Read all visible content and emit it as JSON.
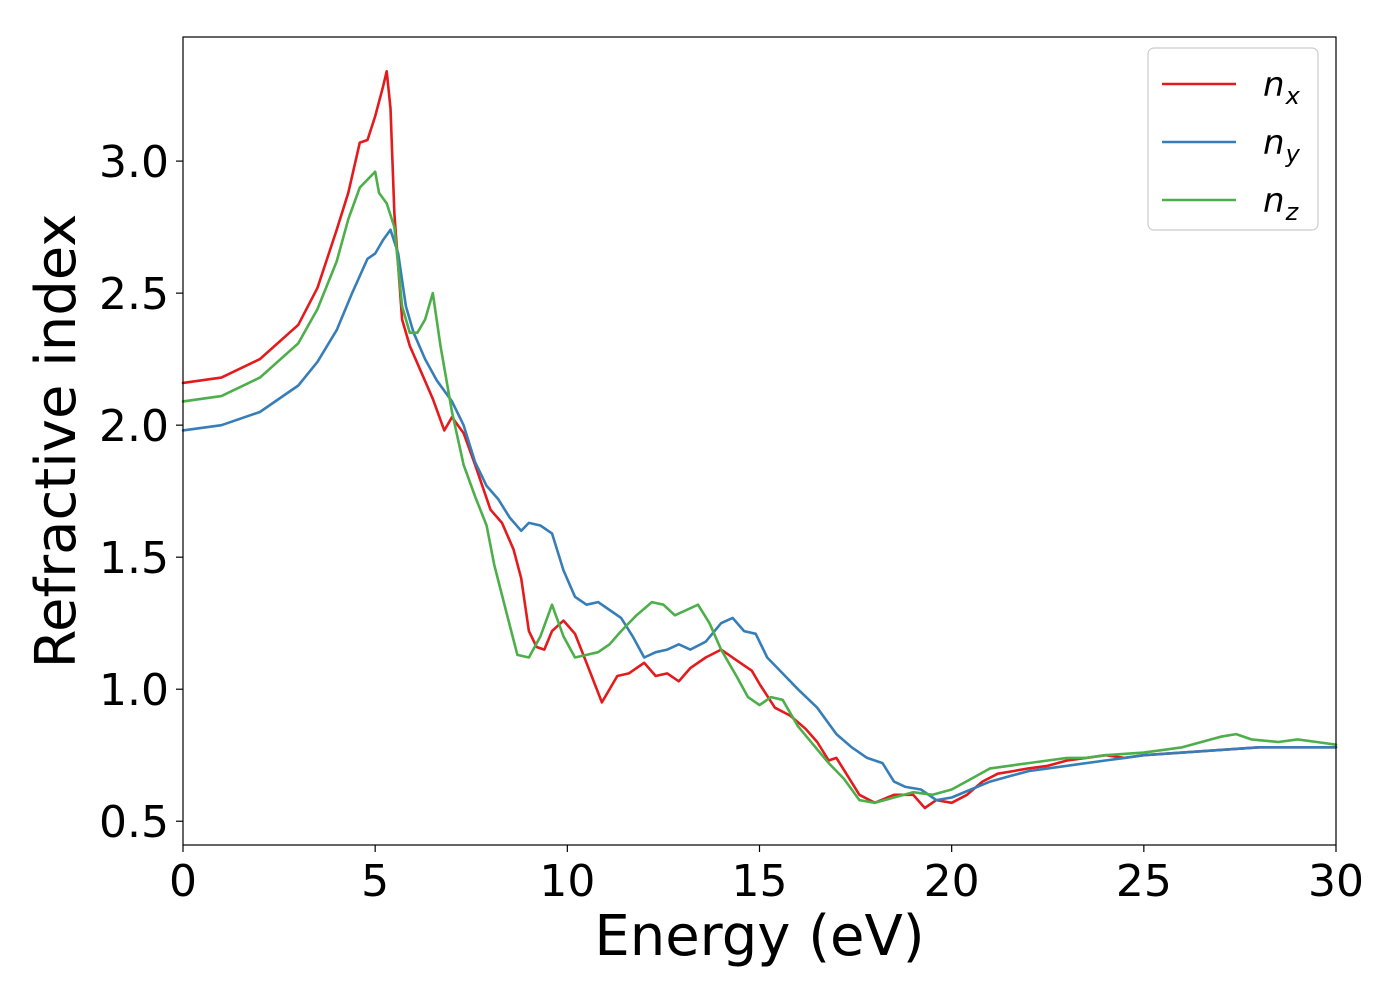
{
  "chart_data": {
    "type": "line",
    "xlabel": "Energy (eV)",
    "ylabel": "Refractive index",
    "xlim": [
      0,
      30
    ],
    "ylim": [
      0.41,
      3.47
    ],
    "xticks": [
      0,
      5,
      10,
      15,
      20,
      25,
      30
    ],
    "yticks": [
      0.5,
      1.0,
      1.5,
      2.0,
      2.5,
      3.0
    ],
    "xtick_labels": [
      "0",
      "5",
      "10",
      "15",
      "20",
      "25",
      "30"
    ],
    "ytick_labels": [
      "0.5",
      "1.0",
      "1.5",
      "2.0",
      "2.5",
      "3.0"
    ],
    "grid": false,
    "legend_position": "top-right",
    "series": [
      {
        "name": "n_x",
        "label_base": "n",
        "label_sub": "x",
        "color": "#e41a1c",
        "x": [
          0,
          1,
          2,
          3,
          3.5,
          4,
          4.3,
          4.6,
          4.8,
          5.0,
          5.2,
          5.3,
          5.4,
          5.5,
          5.7,
          5.9,
          6.2,
          6.5,
          6.8,
          7.0,
          7.3,
          7.6,
          8.0,
          8.3,
          8.6,
          8.8,
          9.0,
          9.2,
          9.4,
          9.6,
          9.9,
          10.2,
          10.5,
          10.9,
          11.3,
          11.6,
          12.0,
          12.3,
          12.6,
          12.9,
          13.2,
          13.6,
          14.0,
          14.4,
          14.8,
          15.0,
          15.4,
          15.8,
          16.2,
          16.5,
          16.8,
          17.0,
          17.3,
          17.6,
          18.0,
          18.5,
          19.0,
          19.3,
          19.6,
          20.0,
          20.4,
          20.8,
          21.2,
          21.6,
          22.0,
          22.5,
          23.0,
          23.5,
          24.0,
          24.5,
          25.0,
          26.0,
          27.0,
          28.0,
          29.0,
          30.0
        ],
        "y": [
          2.16,
          2.18,
          2.25,
          2.38,
          2.52,
          2.74,
          2.88,
          3.07,
          3.08,
          3.17,
          3.28,
          3.34,
          3.2,
          2.8,
          2.4,
          2.3,
          2.2,
          2.1,
          1.98,
          2.03,
          1.97,
          1.85,
          1.68,
          1.63,
          1.53,
          1.42,
          1.22,
          1.16,
          1.15,
          1.22,
          1.26,
          1.21,
          1.1,
          0.95,
          1.05,
          1.06,
          1.1,
          1.05,
          1.06,
          1.03,
          1.08,
          1.12,
          1.15,
          1.11,
          1.07,
          1.02,
          0.93,
          0.9,
          0.85,
          0.8,
          0.73,
          0.74,
          0.67,
          0.6,
          0.57,
          0.6,
          0.6,
          0.55,
          0.58,
          0.57,
          0.6,
          0.65,
          0.68,
          0.69,
          0.7,
          0.71,
          0.73,
          0.74,
          0.75,
          0.74,
          0.75,
          0.76,
          0.77,
          0.78,
          0.78,
          0.78
        ]
      },
      {
        "name": "n_y",
        "label_base": "n",
        "label_sub": "y",
        "color": "#377eb8",
        "x": [
          0,
          1,
          2,
          3,
          3.5,
          4,
          4.4,
          4.8,
          5.0,
          5.2,
          5.4,
          5.6,
          5.8,
          6.0,
          6.3,
          6.6,
          7.0,
          7.3,
          7.6,
          7.9,
          8.2,
          8.5,
          8.8,
          9.0,
          9.3,
          9.6,
          9.9,
          10.2,
          10.5,
          10.8,
          11.1,
          11.4,
          11.7,
          12.0,
          12.3,
          12.6,
          12.9,
          13.2,
          13.6,
          14.0,
          14.3,
          14.6,
          14.9,
          15.2,
          15.6,
          16.0,
          16.5,
          17.0,
          17.4,
          17.8,
          18.2,
          18.5,
          18.8,
          19.2,
          19.6,
          20.0,
          20.5,
          21.0,
          21.5,
          22.0,
          22.5,
          23.0,
          23.5,
          24.0,
          24.5,
          25.0,
          26.0,
          27.0,
          28.0,
          29.0,
          30.0
        ],
        "y": [
          1.98,
          2.0,
          2.05,
          2.15,
          2.24,
          2.36,
          2.5,
          2.63,
          2.65,
          2.7,
          2.74,
          2.65,
          2.45,
          2.35,
          2.25,
          2.17,
          2.09,
          2.0,
          1.86,
          1.77,
          1.72,
          1.65,
          1.6,
          1.63,
          1.62,
          1.59,
          1.45,
          1.35,
          1.32,
          1.33,
          1.3,
          1.27,
          1.2,
          1.12,
          1.14,
          1.15,
          1.17,
          1.15,
          1.18,
          1.25,
          1.27,
          1.22,
          1.21,
          1.12,
          1.06,
          1.0,
          0.93,
          0.83,
          0.78,
          0.74,
          0.72,
          0.65,
          0.63,
          0.62,
          0.58,
          0.59,
          0.62,
          0.65,
          0.67,
          0.69,
          0.7,
          0.71,
          0.72,
          0.73,
          0.74,
          0.75,
          0.76,
          0.77,
          0.78,
          0.78,
          0.78
        ]
      },
      {
        "name": "n_z",
        "label_base": "n",
        "label_sub": "z",
        "color": "#4daf4a",
        "x": [
          0,
          1,
          2,
          3,
          3.5,
          4,
          4.3,
          4.6,
          4.8,
          5.0,
          5.1,
          5.3,
          5.5,
          5.7,
          5.9,
          6.1,
          6.3,
          6.5,
          6.7,
          7.0,
          7.3,
          7.6,
          7.9,
          8.1,
          8.4,
          8.7,
          9.0,
          9.3,
          9.6,
          9.9,
          10.2,
          10.5,
          10.8,
          11.1,
          11.4,
          11.8,
          12.2,
          12.5,
          12.8,
          13.1,
          13.4,
          13.7,
          14.0,
          14.4,
          14.7,
          15.0,
          15.3,
          15.6,
          16.0,
          16.4,
          16.8,
          17.2,
          17.6,
          18.0,
          18.5,
          19.0,
          19.5,
          20.0,
          20.5,
          21.0,
          21.5,
          22.0,
          22.5,
          23.0,
          23.5,
          24.0,
          25.0,
          26.0,
          26.5,
          27.0,
          27.4,
          27.8,
          28.5,
          29.0,
          29.5,
          30.0
        ],
        "y": [
          2.09,
          2.11,
          2.18,
          2.31,
          2.44,
          2.62,
          2.78,
          2.9,
          2.93,
          2.96,
          2.88,
          2.84,
          2.75,
          2.45,
          2.35,
          2.35,
          2.4,
          2.5,
          2.3,
          2.05,
          1.85,
          1.73,
          1.62,
          1.47,
          1.3,
          1.13,
          1.12,
          1.2,
          1.32,
          1.2,
          1.12,
          1.13,
          1.14,
          1.17,
          1.22,
          1.28,
          1.33,
          1.32,
          1.28,
          1.3,
          1.32,
          1.25,
          1.15,
          1.05,
          0.97,
          0.94,
          0.97,
          0.96,
          0.86,
          0.79,
          0.72,
          0.66,
          0.58,
          0.57,
          0.59,
          0.61,
          0.6,
          0.62,
          0.66,
          0.7,
          0.71,
          0.72,
          0.73,
          0.74,
          0.74,
          0.75,
          0.76,
          0.78,
          0.8,
          0.82,
          0.83,
          0.81,
          0.8,
          0.81,
          0.8,
          0.79
        ]
      }
    ]
  }
}
